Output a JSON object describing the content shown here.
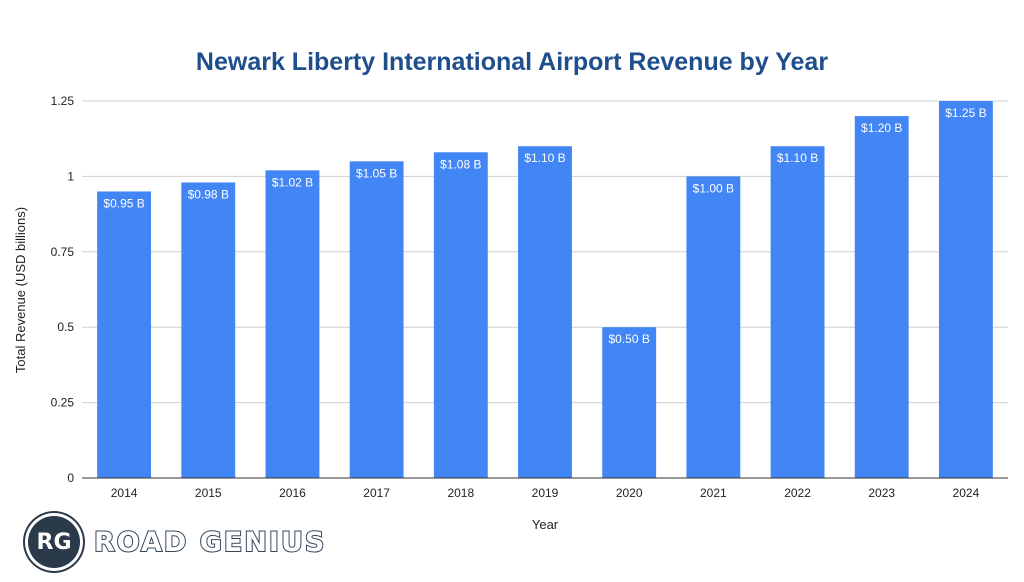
{
  "chart_data": {
    "type": "bar",
    "title": "Newark Liberty International Airport Revenue by Year",
    "xlabel": "Year",
    "ylabel": "Total Revenue (USD billions)",
    "categories": [
      "2014",
      "2015",
      "2016",
      "2017",
      "2018",
      "2019",
      "2020",
      "2021",
      "2022",
      "2023",
      "2024"
    ],
    "values": [
      0.95,
      0.98,
      1.02,
      1.05,
      1.08,
      1.1,
      0.5,
      1.0,
      1.1,
      1.2,
      1.25
    ],
    "data_labels": [
      "$0.95 B",
      "$0.98 B",
      "$1.02 B",
      "$1.05 B",
      "$1.08 B",
      "$1.10 B",
      "$0.50 B",
      "$1.00 B",
      "$1.10 B",
      "$1.20 B",
      "$1.25 B"
    ],
    "ylim": [
      0,
      1.25
    ],
    "yticks": [
      "0",
      "0.25",
      "0.5",
      "0.75",
      "1",
      "1.25"
    ],
    "grid": true,
    "bar_color": "#4285f4",
    "title_color": "#1f4e8c"
  },
  "brand": {
    "badge": "RG",
    "name": "ROAD GENIUS"
  }
}
